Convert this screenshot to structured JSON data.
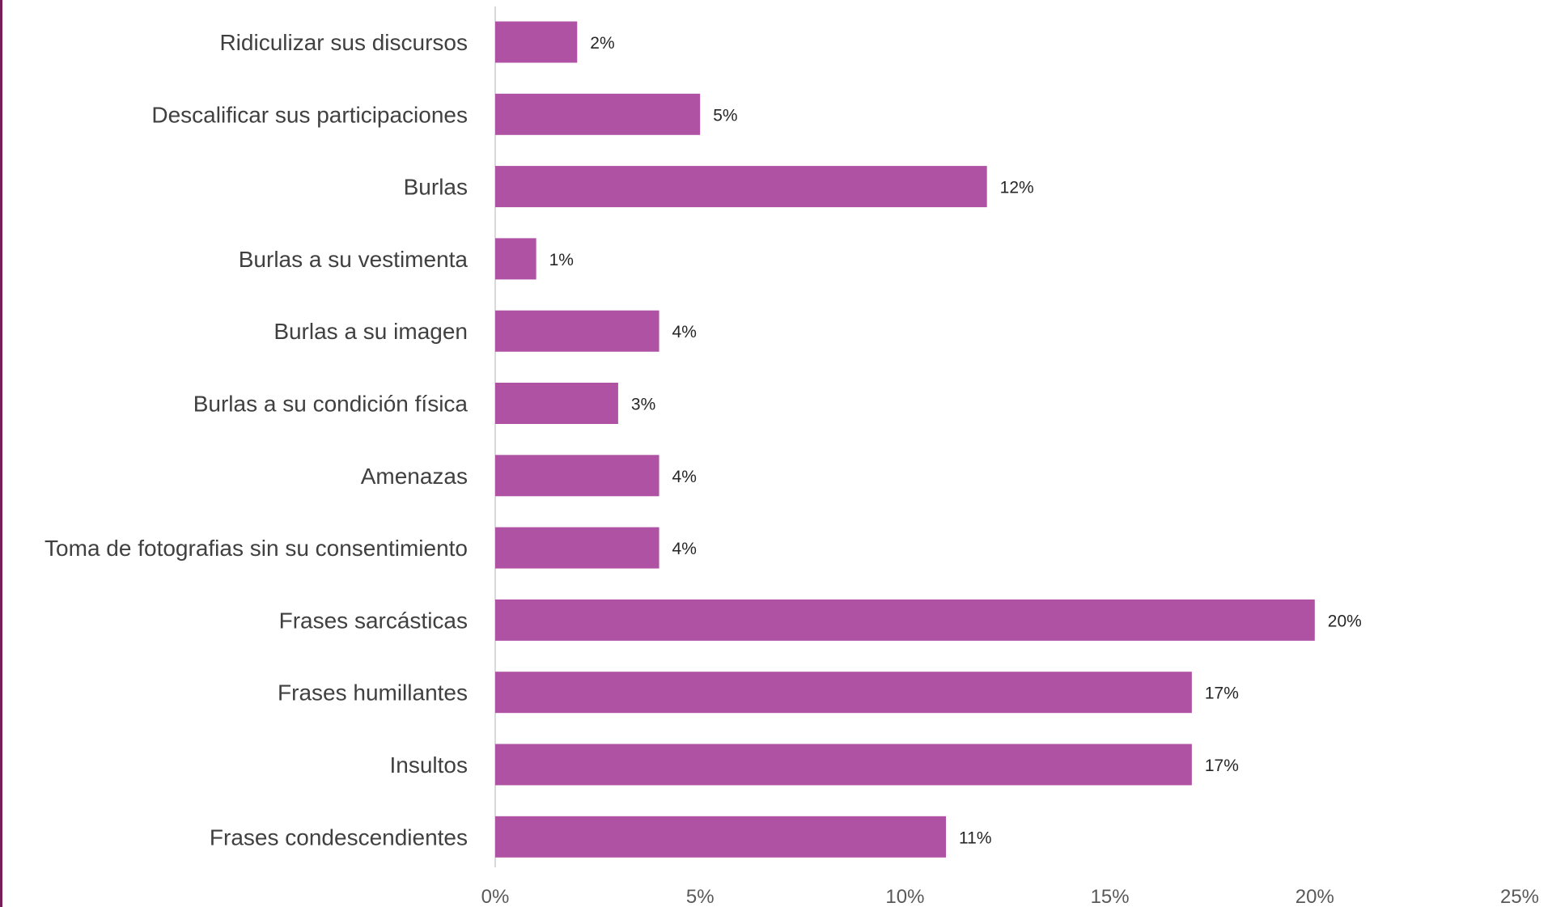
{
  "chart_data": {
    "type": "bar",
    "orientation": "horizontal",
    "title": "",
    "xlabel": "",
    "ylabel": "",
    "categories": [
      "Ridiculizar sus discursos",
      "Descalificar sus participaciones",
      "Burlas",
      "Burlas a su vestimenta",
      "Burlas a su imagen",
      "Burlas a su condición física",
      "Amenazas",
      "Toma de fotografias sin su consentimiento",
      "Frases sarcásticas",
      "Frases humillantes",
      "Insultos",
      "Frases condescendientes"
    ],
    "values": [
      2,
      5,
      12,
      1,
      4,
      3,
      4,
      4,
      20,
      17,
      17,
      11
    ],
    "value_labels": [
      "2%",
      "5%",
      "12%",
      "1%",
      "4%",
      "3%",
      "4%",
      "4%",
      "20%",
      "17%",
      "17%",
      "11%"
    ],
    "xlim": [
      0,
      25
    ],
    "x_ticks": [
      0,
      5,
      10,
      15,
      20,
      25
    ],
    "x_tick_labels": [
      "0%",
      "5%",
      "10%",
      "15%",
      "20%",
      "25%"
    ],
    "grid": false,
    "legend": "none",
    "bar_color": "#af52a3",
    "axis_color": "#d9d9d9",
    "border_color": "#7a1f5c"
  }
}
